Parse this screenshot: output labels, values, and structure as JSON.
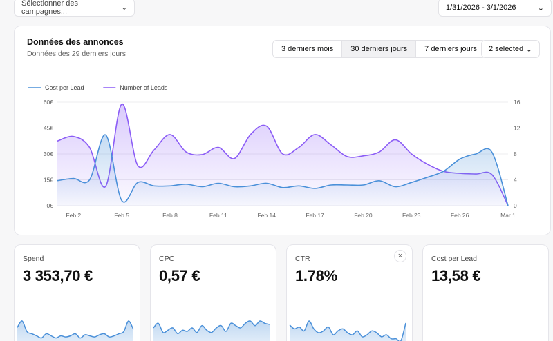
{
  "filters": {
    "campaigns_placeholder": "Sélectionner des campagnes...",
    "date_range": "1/31/2026 - 3/1/2026"
  },
  "ads_card": {
    "title": "Données des annonces",
    "subtitle": "Données des 29 derniers jours",
    "ranges": [
      "3 derniers mois",
      "30 derniers jours",
      "7 derniers jours"
    ],
    "active_range": "30 derniers jours",
    "metrics_select": "2 selected"
  },
  "colors": {
    "cpl": "#4a90d9",
    "leads": "#8b5cf6"
  },
  "chart_data": {
    "type": "area",
    "x": [
      "Feb 1",
      "Feb 2",
      "Feb 3",
      "Feb 4",
      "Feb 5",
      "Feb 6",
      "Feb 7",
      "Feb 8",
      "Feb 9",
      "Feb 10",
      "Feb 11",
      "Feb 12",
      "Feb 13",
      "Feb 14",
      "Feb 15",
      "Feb 16",
      "Feb 17",
      "Feb 18",
      "Feb 19",
      "Feb 20",
      "Feb 21",
      "Feb 22",
      "Feb 23",
      "Feb 24",
      "Feb 25",
      "Feb 26",
      "Feb 27",
      "Feb 28",
      "Mar 1"
    ],
    "x_tick_labels": [
      "Feb 2",
      "Feb 5",
      "Feb 8",
      "Feb 11",
      "Feb 14",
      "Feb 17",
      "Feb 20",
      "Feb 23",
      "Feb 26",
      "Mar 1"
    ],
    "y_left_ticks": [
      "0€",
      "15€",
      "30€",
      "45€",
      "60€"
    ],
    "y_right_ticks": [
      "0",
      "4",
      "8",
      "12",
      "16"
    ],
    "y_left_range": [
      0,
      60
    ],
    "y_right_range": [
      0,
      16
    ],
    "legend_position": "top-left",
    "series": [
      {
        "name": "Cost per Lead",
        "axis": "left",
        "values": [
          14.5,
          15.8,
          15,
          41,
          3,
          13.5,
          11.5,
          11.5,
          12.5,
          11,
          13,
          11,
          11.5,
          13,
          10.5,
          11.5,
          10,
          12,
          12,
          12,
          14.5,
          11,
          13.5,
          16.5,
          20,
          27,
          30,
          31,
          0
        ]
      },
      {
        "name": "Number of Leads",
        "axis": "right",
        "values": [
          10,
          10.7,
          9,
          3,
          15.7,
          6.2,
          8.6,
          11,
          8.3,
          7.9,
          9,
          7.3,
          11,
          12.3,
          8,
          9,
          11,
          9.4,
          7.6,
          7.7,
          8.3,
          10.2,
          8,
          6.4,
          5.3,
          5,
          4.9,
          4.8,
          0
        ]
      }
    ]
  },
  "kpis": [
    {
      "label": "Spend",
      "value": "3 353,70 €",
      "spark": [
        20,
        26,
        16,
        14,
        12,
        10,
        14,
        12,
        10,
        12,
        11,
        12,
        14,
        10,
        13,
        12,
        11,
        13,
        14,
        11,
        12,
        14,
        16,
        26,
        18
      ],
      "closable": false
    },
    {
      "label": "CPC",
      "value": "0,57 €",
      "spark": [
        18,
        22,
        14,
        16,
        18,
        13,
        16,
        15,
        18,
        14,
        20,
        16,
        14,
        18,
        20,
        15,
        22,
        20,
        18,
        22,
        24,
        20,
        24,
        22,
        21
      ],
      "closable": false
    },
    {
      "label": "CTR",
      "value": "1.78%",
      "spark": [
        24,
        20,
        22,
        18,
        28,
        20,
        16,
        18,
        22,
        14,
        18,
        20,
        16,
        14,
        18,
        12,
        14,
        18,
        16,
        12,
        14,
        10,
        10,
        8,
        26
      ],
      "closable": true,
      "close_symbol": "×"
    },
    {
      "label": "Cost per Lead",
      "value": "13,58 €",
      "spark": [],
      "closable": false
    }
  ]
}
